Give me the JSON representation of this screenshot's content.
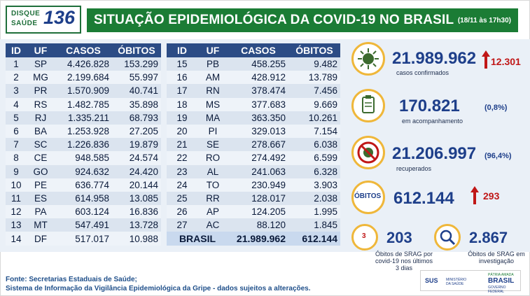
{
  "header": {
    "logo_line1": "DISQUE",
    "logo_line2": "SAÚDE",
    "logo_number": "136",
    "title": "SITUAÇÃO EPIDEMIOLÓGICA DA COVID-19 NO BRASIL",
    "date": "(18/11 às 17h30)"
  },
  "table": {
    "columns": [
      "ID",
      "UF",
      "CASOS",
      "ÓBITOS"
    ],
    "left_rows": [
      [
        "1",
        "SP",
        "4.426.828",
        "153.299"
      ],
      [
        "2",
        "MG",
        "2.199.684",
        "55.997"
      ],
      [
        "3",
        "PR",
        "1.570.909",
        "40.741"
      ],
      [
        "4",
        "RS",
        "1.482.785",
        "35.898"
      ],
      [
        "5",
        "RJ",
        "1.335.211",
        "68.793"
      ],
      [
        "6",
        "BA",
        "1.253.928",
        "27.205"
      ],
      [
        "7",
        "SC",
        "1.226.836",
        "19.879"
      ],
      [
        "8",
        "CE",
        "948.585",
        "24.574"
      ],
      [
        "9",
        "GO",
        "924.632",
        "24.420"
      ],
      [
        "10",
        "PE",
        "636.774",
        "20.144"
      ],
      [
        "11",
        "ES",
        "614.958",
        "13.085"
      ],
      [
        "12",
        "PA",
        "603.124",
        "16.836"
      ],
      [
        "13",
        "MT",
        "547.491",
        "13.728"
      ],
      [
        "14",
        "DF",
        "517.017",
        "10.988"
      ]
    ],
    "right_rows": [
      [
        "15",
        "PB",
        "458.255",
        "9.482"
      ],
      [
        "16",
        "AM",
        "428.912",
        "13.789"
      ],
      [
        "17",
        "RN",
        "378.474",
        "7.456"
      ],
      [
        "18",
        "MS",
        "377.683",
        "9.669"
      ],
      [
        "19",
        "MA",
        "363.350",
        "10.261"
      ],
      [
        "20",
        "PI",
        "329.013",
        "7.154"
      ],
      [
        "21",
        "SE",
        "278.667",
        "6.038"
      ],
      [
        "22",
        "RO",
        "274.492",
        "6.599"
      ],
      [
        "23",
        "AL",
        "241.063",
        "6.328"
      ],
      [
        "24",
        "TO",
        "230.949",
        "3.903"
      ],
      [
        "25",
        "RR",
        "128.017",
        "2.038"
      ],
      [
        "26",
        "AP",
        "124.205",
        "1.995"
      ],
      [
        "27",
        "AC",
        "88.120",
        "1.845"
      ]
    ],
    "total": {
      "label": "BRASIL",
      "casos": "21.989.962",
      "obitos": "612.144"
    }
  },
  "kpis": {
    "confirmed": {
      "value": "21.989.962",
      "delta": "12.301",
      "label": "casos confirmados"
    },
    "monitoring": {
      "value": "170.821",
      "pct": "(0,8%)",
      "label": "em acompanhamento"
    },
    "recovered": {
      "value": "21.206.997",
      "pct": "(96,4%)",
      "label": "recuperados"
    },
    "deaths": {
      "icon_label": "ÓBITOS",
      "value": "612.144",
      "delta": "293"
    },
    "srag_3days": {
      "value": "203",
      "label_l1": "Óbitos de SRAG por",
      "label_l2": "covid-19 nos últimos",
      "label_l3": "3 dias",
      "icon_day": "3"
    },
    "srag_investigation": {
      "value": "2.867",
      "label_l1": "Óbitos de SRAG em",
      "label_l2": "investigação"
    }
  },
  "footer": {
    "line1": "Fonte: Secretarias Estaduais de Saúde;",
    "line2": "Sistema de Informação da Vigilância Epidemiológica da Gripe - dados sujeitos a alterações."
  },
  "logos": {
    "sus": "SUS",
    "ministerio": "MINISTÉRIO DA SAÚDE",
    "patria": "PÁTRIA AMADA",
    "brasil": "BRASIL",
    "gov": "GOVERNO FEDERAL"
  },
  "colors": {
    "green": "#1b7c35",
    "navy": "#2c4c85",
    "accent": "#efb73a",
    "alert": "#c01717"
  },
  "icons": [
    "virus-icon",
    "clipboard-icon",
    "no-virus-icon",
    "search-icon",
    "calendar-icon",
    "arrow-up-icon"
  ]
}
